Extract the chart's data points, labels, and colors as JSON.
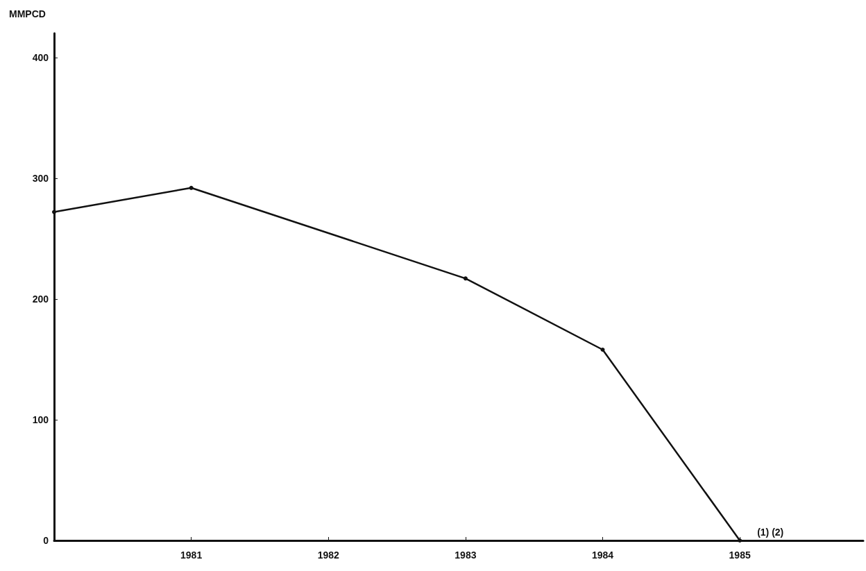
{
  "chart_data": {
    "type": "line",
    "ylabel": "MMPCD",
    "x": [
      1980,
      1981,
      1983,
      1984,
      1985
    ],
    "values": [
      272,
      292,
      217,
      158,
      0
    ],
    "color": "#111111",
    "xlim": [
      1980,
      1985.9
    ],
    "xticks": [
      1981,
      1982,
      1983,
      1984,
      1985
    ],
    "ylim": [
      0,
      420
    ],
    "yticks": [
      0,
      100,
      200,
      300,
      400
    ],
    "grid": false,
    "marker": "circle",
    "line_style": "solid",
    "annotations": [
      {
        "text": "(1) (2)",
        "x": 1985,
        "y": 0
      }
    ]
  }
}
